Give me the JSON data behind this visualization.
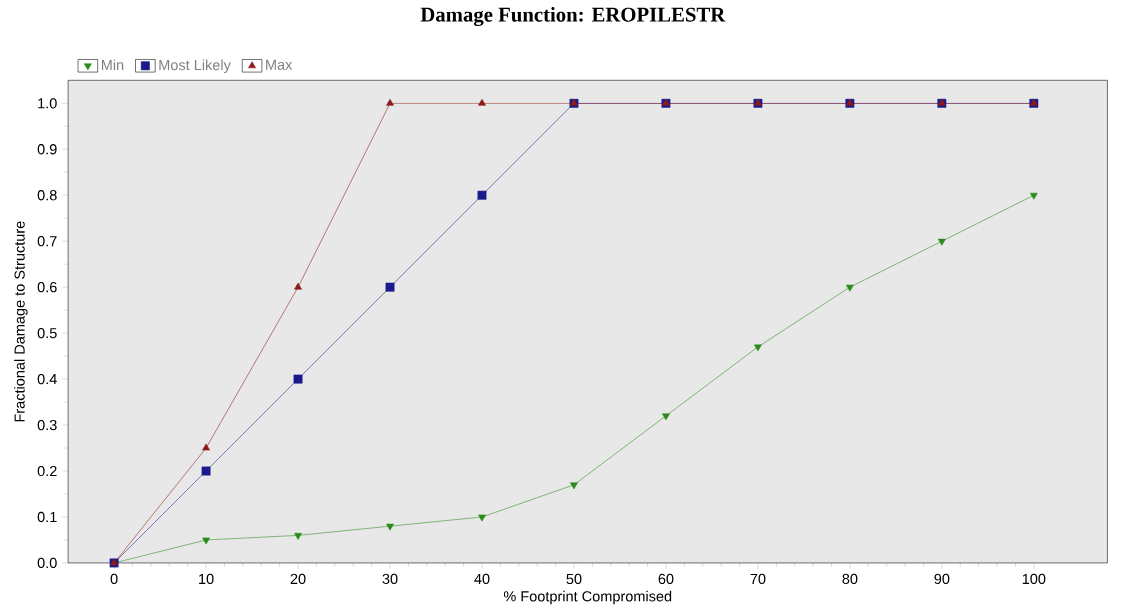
{
  "chart_data": {
    "type": "line",
    "title": "Damage Function: EROPILESTR",
    "xlabel": "% Footprint Compromised",
    "ylabel": "Fractional Damage to Structure",
    "x": [
      0,
      10,
      20,
      30,
      40,
      50,
      60,
      70,
      80,
      90,
      100
    ],
    "series": [
      {
        "name": "Min",
        "color": "#2a8a1a",
        "marker": "triangle-down",
        "values": [
          0,
          0.05,
          0.06,
          0.08,
          0.1,
          0.17,
          0.32,
          0.47,
          0.6,
          0.7,
          0.8
        ]
      },
      {
        "name": "Most Likely",
        "color": "#1a1a8c",
        "marker": "square",
        "values": [
          0,
          0.2,
          0.4,
          0.6,
          0.8,
          1.0,
          1.0,
          1.0,
          1.0,
          1.0,
          1.0
        ]
      },
      {
        "name": "Max",
        "color": "#8c1a1a",
        "marker": "triangle",
        "values": [
          0,
          0.25,
          0.6,
          1.0,
          1.0,
          1.0,
          1.0,
          1.0,
          1.0,
          1.0,
          1.0
        ]
      }
    ],
    "xlim": [
      -5,
      108
    ],
    "ylim": [
      0,
      1.05
    ],
    "xticks": [
      0,
      10,
      20,
      30,
      40,
      50,
      60,
      70,
      80,
      90,
      100
    ],
    "yticks": [
      {
        "value": 0,
        "label": "0.0"
      },
      {
        "value": 0.1,
        "label": "0.1"
      },
      {
        "value": 0.2,
        "label": "0.2"
      },
      {
        "value": 0.3,
        "label": "0.3"
      },
      {
        "value": 0.4,
        "label": "0.4"
      },
      {
        "value": 0.5,
        "label": "0.5"
      },
      {
        "value": 0.6,
        "label": "0.6"
      },
      {
        "value": 0.7,
        "label": "0.7"
      },
      {
        "value": 0.8,
        "label": "0.8"
      },
      {
        "value": 0.9,
        "label": "0.9"
      },
      {
        "value": 1.0,
        "label": "1.0"
      }
    ],
    "grid": false,
    "legend": "top left",
    "line_style": "solid"
  }
}
